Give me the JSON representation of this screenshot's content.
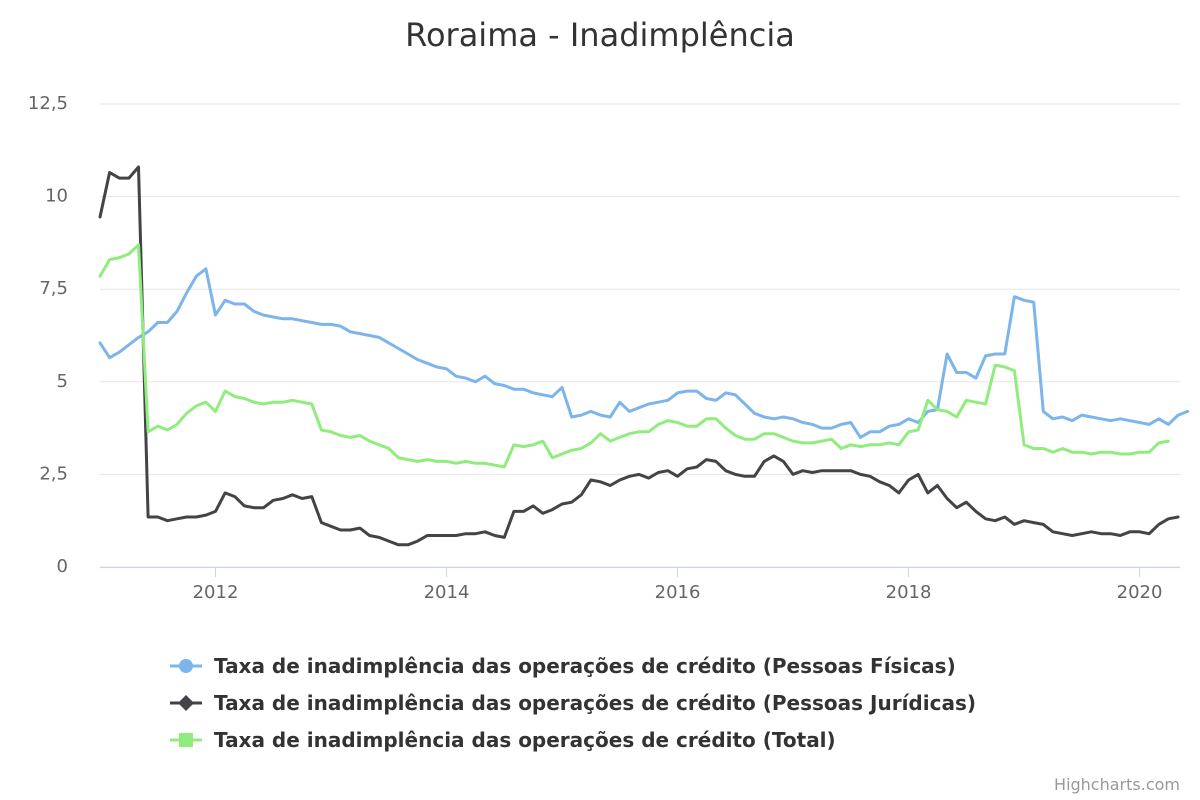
{
  "credits": "Highcharts.com",
  "colors": {
    "pf": "#7cb5ec",
    "pj": "#434348",
    "total": "#90ed7d",
    "grid": "#e6e6e6",
    "axis_text": "#666666",
    "credits": "#999999"
  },
  "chart_data": {
    "type": "line",
    "title": "Roraima - Inadimplência",
    "xlabel": "",
    "ylabel": "",
    "xlim": [
      2011.0,
      2020.35
    ],
    "ylim": [
      0,
      12.5
    ],
    "x_ticks": [
      {
        "value": 2012,
        "label": "2012"
      },
      {
        "value": 2014,
        "label": "2014"
      },
      {
        "value": 2016,
        "label": "2016"
      },
      {
        "value": 2018,
        "label": "2018"
      },
      {
        "value": 2020,
        "label": "2020"
      }
    ],
    "y_ticks": [
      {
        "value": 0,
        "label": "0"
      },
      {
        "value": 2.5,
        "label": "2,5"
      },
      {
        "value": 5,
        "label": "5"
      },
      {
        "value": 7.5,
        "label": "7,5"
      },
      {
        "value": 10,
        "label": "10"
      },
      {
        "value": 12.5,
        "label": "12,5"
      }
    ],
    "grid": true,
    "legend_position": "bottom-center",
    "x_start": "2011-01",
    "x_step": "1 month",
    "series": [
      {
        "name": "Taxa de inadimplência das operações de crédito (Pessoas Físicas)",
        "marker": "circle",
        "values": [
          6.05,
          5.65,
          5.8,
          6.0,
          6.2,
          6.35,
          6.6,
          6.6,
          6.9,
          7.4,
          7.85,
          8.05,
          6.8,
          7.2,
          7.1,
          7.1,
          6.9,
          6.8,
          6.75,
          6.7,
          6.7,
          6.65,
          6.6,
          6.55,
          6.55,
          6.5,
          6.35,
          6.3,
          6.25,
          6.2,
          6.05,
          5.9,
          5.75,
          5.6,
          5.5,
          5.4,
          5.35,
          5.15,
          5.1,
          5.0,
          5.15,
          4.95,
          4.9,
          4.8,
          4.8,
          4.7,
          4.65,
          4.6,
          4.85,
          4.05,
          4.1,
          4.2,
          4.1,
          4.05,
          4.45,
          4.2,
          4.3,
          4.4,
          4.45,
          4.5,
          4.7,
          4.75,
          4.75,
          4.55,
          4.5,
          4.7,
          4.65,
          4.4,
          4.15,
          4.05,
          4.0,
          4.05,
          4.0,
          3.9,
          3.85,
          3.75,
          3.75,
          3.85,
          3.9,
          3.5,
          3.65,
          3.65,
          3.8,
          3.85,
          4.0,
          3.9,
          4.2,
          4.25,
          5.75,
          5.25,
          5.25,
          5.1,
          5.7,
          5.75,
          5.75,
          7.3,
          7.2,
          7.15,
          4.2,
          4.0,
          4.05,
          3.95,
          4.1,
          4.05,
          4.0,
          3.95,
          4.0,
          3.95,
          3.9,
          3.85,
          4.0,
          3.85,
          4.1,
          4.2
        ]
      },
      {
        "name": "Taxa de inadimplência das operações de crédito (Pessoas Jurídicas)",
        "marker": "diamond",
        "values": [
          9.45,
          10.65,
          10.5,
          10.5,
          10.8,
          1.35,
          1.35,
          1.25,
          1.3,
          1.35,
          1.35,
          1.4,
          1.5,
          2.0,
          1.9,
          1.65,
          1.6,
          1.6,
          1.8,
          1.85,
          1.95,
          1.85,
          1.9,
          1.2,
          1.1,
          1.0,
          1.0,
          1.05,
          0.85,
          0.8,
          0.7,
          0.6,
          0.6,
          0.7,
          0.85,
          0.85,
          0.85,
          0.85,
          0.9,
          0.9,
          0.95,
          0.85,
          0.8,
          1.5,
          1.5,
          1.65,
          1.45,
          1.55,
          1.7,
          1.75,
          1.95,
          2.35,
          2.3,
          2.2,
          2.35,
          2.45,
          2.5,
          2.4,
          2.55,
          2.6,
          2.45,
          2.65,
          2.7,
          2.9,
          2.85,
          2.6,
          2.5,
          2.45,
          2.45,
          2.85,
          3.0,
          2.85,
          2.5,
          2.6,
          2.55,
          2.6,
          2.6,
          2.6,
          2.6,
          2.5,
          2.45,
          2.3,
          2.2,
          2.0,
          2.35,
          2.5,
          2.0,
          2.2,
          1.85,
          1.6,
          1.75,
          1.5,
          1.3,
          1.25,
          1.35,
          1.15,
          1.25,
          1.2,
          1.15,
          0.95,
          0.9,
          0.85,
          0.9,
          0.95,
          0.9,
          0.9,
          0.85,
          0.95,
          0.95,
          0.9,
          1.15,
          1.3,
          1.35
        ]
      },
      {
        "name": "Taxa de inadimplência das operações de crédito (Total)",
        "marker": "square",
        "values": [
          7.85,
          8.3,
          8.35,
          8.45,
          8.7,
          3.65,
          3.8,
          3.7,
          3.85,
          4.15,
          4.35,
          4.45,
          4.2,
          4.75,
          4.6,
          4.55,
          4.45,
          4.4,
          4.45,
          4.45,
          4.5,
          4.45,
          4.4,
          3.7,
          3.65,
          3.55,
          3.5,
          3.55,
          3.4,
          3.3,
          3.2,
          2.95,
          2.9,
          2.85,
          2.9,
          2.85,
          2.85,
          2.8,
          2.85,
          2.8,
          2.8,
          2.75,
          2.7,
          3.3,
          3.25,
          3.3,
          3.4,
          2.95,
          3.05,
          3.15,
          3.2,
          3.35,
          3.6,
          3.4,
          3.5,
          3.6,
          3.65,
          3.65,
          3.85,
          3.95,
          3.9,
          3.8,
          3.8,
          4.0,
          4.0,
          3.75,
          3.55,
          3.45,
          3.45,
          3.6,
          3.6,
          3.5,
          3.4,
          3.35,
          3.35,
          3.4,
          3.45,
          3.2,
          3.3,
          3.25,
          3.3,
          3.3,
          3.35,
          3.3,
          3.65,
          3.7,
          4.5,
          4.25,
          4.2,
          4.05,
          4.5,
          4.45,
          4.4,
          5.45,
          5.4,
          5.3,
          3.3,
          3.2,
          3.2,
          3.1,
          3.2,
          3.1,
          3.1,
          3.05,
          3.1,
          3.1,
          3.05,
          3.05,
          3.1,
          3.1,
          3.35,
          3.4
        ]
      }
    ]
  }
}
